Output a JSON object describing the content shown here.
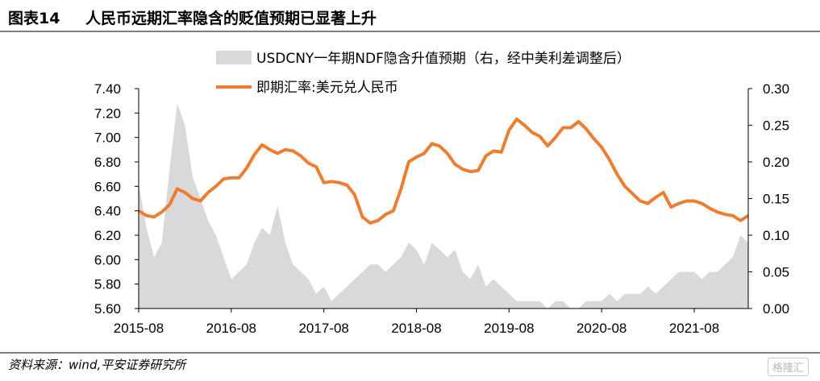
{
  "header": {
    "figure_number": "图表14",
    "title": "人民币远期汇率隐含的贬值预期已显著上升"
  },
  "footer": {
    "source": "资料来源：wind,平安证券研究所",
    "watermark": "格隆汇"
  },
  "colors": {
    "spot_line": "#ED7D31",
    "ndf_area": "#D9D9D9",
    "axis": "#000000"
  },
  "chart_data": {
    "type": "area",
    "x_ticks": [
      "2015-08",
      "2016-08",
      "2017-08",
      "2018-08",
      "2019-08",
      "2020-08",
      "2021-08"
    ],
    "x_range": [
      "2015-08",
      "2022-03"
    ],
    "y_left": {
      "ylim": [
        5.6,
        7.4
      ],
      "ticks": [
        "5.60",
        "5.80",
        "6.00",
        "6.20",
        "6.40",
        "6.60",
        "6.80",
        "7.00",
        "7.20",
        "7.40"
      ]
    },
    "y_right": {
      "ylim": [
        0,
        0.3
      ],
      "ticks": [
        "0.00",
        "0.05",
        "0.10",
        "0.15",
        "0.20",
        "0.25",
        "0.30"
      ]
    },
    "grid": false,
    "legend_position": "top-center",
    "series": [
      {
        "name": "USDCNY一年期NDF隐含升值预期（右，经中美利差调整后）",
        "type": "area",
        "axis": "right",
        "x": [
          "2015-08",
          "2015-09",
          "2015-10",
          "2015-11",
          "2015-12",
          "2016-01",
          "2016-02",
          "2016-03",
          "2016-04",
          "2016-05",
          "2016-06",
          "2016-07",
          "2016-08",
          "2016-09",
          "2016-10",
          "2016-11",
          "2016-12",
          "2017-01",
          "2017-02",
          "2017-03",
          "2017-04",
          "2017-05",
          "2017-06",
          "2017-07",
          "2017-08",
          "2017-09",
          "2017-10",
          "2017-11",
          "2017-12",
          "2018-01",
          "2018-02",
          "2018-03",
          "2018-04",
          "2018-05",
          "2018-06",
          "2018-07",
          "2018-08",
          "2018-09",
          "2018-10",
          "2018-11",
          "2018-12",
          "2019-01",
          "2019-02",
          "2019-03",
          "2019-04",
          "2019-05",
          "2019-06",
          "2019-07",
          "2019-08",
          "2019-09",
          "2019-10",
          "2019-11",
          "2019-12",
          "2020-01",
          "2020-02",
          "2020-03",
          "2020-04",
          "2020-05",
          "2020-06",
          "2020-07",
          "2020-08",
          "2020-09",
          "2020-10",
          "2020-11",
          "2020-12",
          "2021-01",
          "2021-02",
          "2021-03",
          "2021-04",
          "2021-05",
          "2021-06",
          "2021-07",
          "2021-08",
          "2021-09",
          "2021-10",
          "2021-11",
          "2021-12",
          "2022-01",
          "2022-02",
          "2022-03"
        ],
        "values": [
          0.17,
          0.11,
          0.07,
          0.09,
          0.19,
          0.28,
          0.25,
          0.18,
          0.15,
          0.12,
          0.1,
          0.07,
          0.04,
          0.05,
          0.06,
          0.09,
          0.11,
          0.1,
          0.14,
          0.09,
          0.06,
          0.05,
          0.04,
          0.02,
          0.03,
          0.01,
          0.02,
          0.03,
          0.04,
          0.05,
          0.06,
          0.06,
          0.05,
          0.06,
          0.07,
          0.09,
          0.08,
          0.06,
          0.09,
          0.08,
          0.07,
          0.08,
          0.05,
          0.04,
          0.06,
          0.03,
          0.04,
          0.03,
          0.02,
          0.01,
          0.01,
          0.01,
          0.01,
          0.0,
          0.01,
          0.01,
          0.0,
          0.0,
          0.01,
          0.01,
          0.01,
          0.02,
          0.01,
          0.02,
          0.02,
          0.02,
          0.03,
          0.02,
          0.03,
          0.04,
          0.05,
          0.05,
          0.05,
          0.04,
          0.05,
          0.05,
          0.06,
          0.07,
          0.1,
          0.09
        ]
      },
      {
        "name": "即期汇率:美元兑人民币",
        "type": "line",
        "axis": "left",
        "x": [
          "2015-08",
          "2015-09",
          "2015-10",
          "2015-11",
          "2015-12",
          "2016-01",
          "2016-02",
          "2016-03",
          "2016-04",
          "2016-05",
          "2016-06",
          "2016-07",
          "2016-08",
          "2016-09",
          "2016-10",
          "2016-11",
          "2016-12",
          "2017-01",
          "2017-02",
          "2017-03",
          "2017-04",
          "2017-05",
          "2017-06",
          "2017-07",
          "2017-08",
          "2017-09",
          "2017-10",
          "2017-11",
          "2017-12",
          "2018-01",
          "2018-02",
          "2018-03",
          "2018-04",
          "2018-05",
          "2018-06",
          "2018-07",
          "2018-08",
          "2018-09",
          "2018-10",
          "2018-11",
          "2018-12",
          "2019-01",
          "2019-02",
          "2019-03",
          "2019-04",
          "2019-05",
          "2019-06",
          "2019-07",
          "2019-08",
          "2019-09",
          "2019-10",
          "2019-11",
          "2019-12",
          "2020-01",
          "2020-02",
          "2020-03",
          "2020-04",
          "2020-05",
          "2020-06",
          "2020-07",
          "2020-08",
          "2020-09",
          "2020-10",
          "2020-11",
          "2020-12",
          "2021-01",
          "2021-02",
          "2021-03",
          "2021-04",
          "2021-05",
          "2021-06",
          "2021-07",
          "2021-08",
          "2021-09",
          "2021-10",
          "2021-11",
          "2021-12",
          "2022-01",
          "2022-02",
          "2022-03"
        ],
        "values": [
          6.4,
          6.36,
          6.35,
          6.39,
          6.45,
          6.58,
          6.55,
          6.5,
          6.48,
          6.55,
          6.6,
          6.66,
          6.67,
          6.67,
          6.75,
          6.86,
          6.94,
          6.9,
          6.87,
          6.9,
          6.89,
          6.85,
          6.79,
          6.76,
          6.63,
          6.64,
          6.63,
          6.61,
          6.53,
          6.35,
          6.3,
          6.32,
          6.37,
          6.4,
          6.58,
          6.8,
          6.84,
          6.87,
          6.95,
          6.93,
          6.87,
          6.78,
          6.74,
          6.72,
          6.73,
          6.85,
          6.89,
          6.88,
          7.06,
          7.15,
          7.1,
          7.04,
          7.01,
          6.93,
          7.0,
          7.08,
          7.08,
          7.13,
          7.07,
          6.99,
          6.92,
          6.82,
          6.7,
          6.6,
          6.54,
          6.48,
          6.46,
          6.51,
          6.55,
          6.43,
          6.46,
          6.48,
          6.48,
          6.46,
          6.42,
          6.39,
          6.37,
          6.36,
          6.32,
          6.36
        ]
      }
    ]
  }
}
